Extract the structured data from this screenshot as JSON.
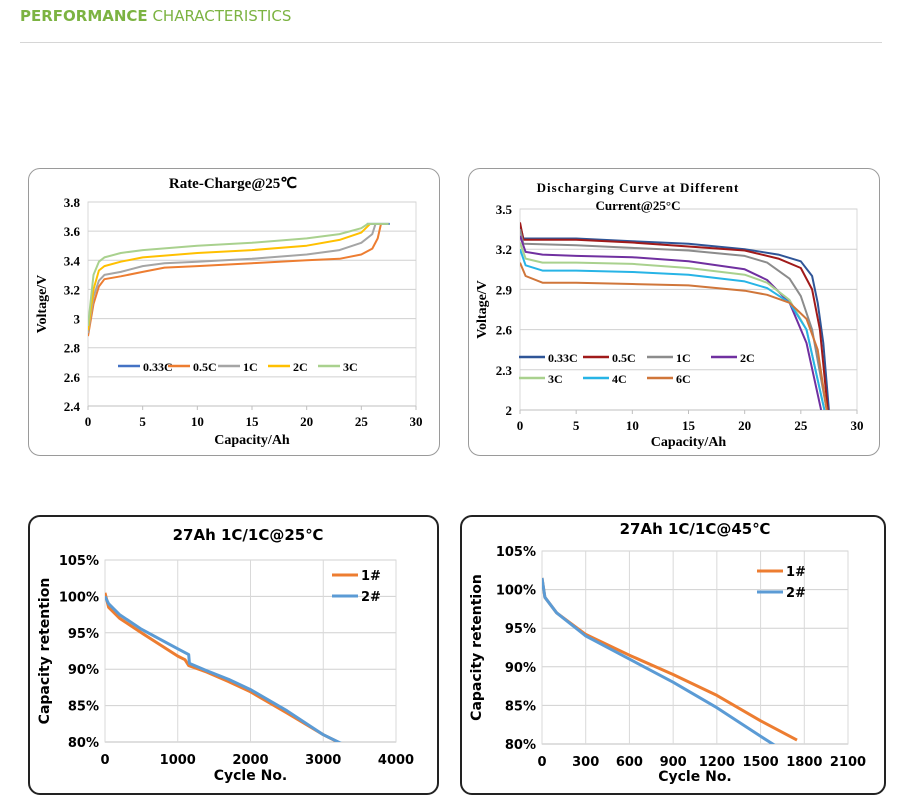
{
  "header": {
    "bold": "PERFORMANCE",
    "rest": " CHARACTERISTICS",
    "color": "#7cb342"
  },
  "chart_data": [
    {
      "type": "line",
      "title": "Rate-Charge@25℃",
      "xlabel": "Capacity/Ah",
      "ylabel": "Voltage/V",
      "xlim": [
        0,
        30
      ],
      "ylim": [
        2.4,
        3.8
      ],
      "xticks": [
        "0",
        "5",
        "10",
        "15",
        "20",
        "25",
        "30"
      ],
      "yticks": [
        "2.4",
        "2.6",
        "2.8",
        "3",
        "3.2",
        "3.4",
        "3.6",
        "3.8"
      ],
      "grid": "horizontal",
      "legend": "center",
      "series": [
        {
          "name": "0.33C",
          "color": "#4472c4",
          "points": [
            [
              25.5,
              3.65
            ],
            [
              27.6,
              3.65
            ]
          ]
        },
        {
          "name": "0.5C",
          "color": "#ed7d31",
          "points": [
            [
              0,
              2.88
            ],
            [
              0.5,
              3.1
            ],
            [
              1,
              3.22
            ],
            [
              1.5,
              3.27
            ],
            [
              3,
              3.29
            ],
            [
              5,
              3.32
            ],
            [
              7,
              3.35
            ],
            [
              10,
              3.36
            ],
            [
              15,
              3.38
            ],
            [
              20,
              3.4
            ],
            [
              23,
              3.41
            ],
            [
              25,
              3.44
            ],
            [
              26,
              3.48
            ],
            [
              26.5,
              3.55
            ],
            [
              26.8,
              3.65
            ]
          ]
        },
        {
          "name": "1C",
          "color": "#a5a5a5",
          "points": [
            [
              0,
              2.9
            ],
            [
              0.5,
              3.15
            ],
            [
              1,
              3.26
            ],
            [
              1.5,
              3.3
            ],
            [
              3,
              3.32
            ],
            [
              5,
              3.36
            ],
            [
              7,
              3.38
            ],
            [
              10,
              3.39
            ],
            [
              15,
              3.41
            ],
            [
              20,
              3.44
            ],
            [
              23,
              3.47
            ],
            [
              25,
              3.52
            ],
            [
              26,
              3.58
            ],
            [
              26.3,
              3.65
            ]
          ]
        },
        {
          "name": "2C",
          "color": "#ffc000",
          "points": [
            [
              0,
              2.92
            ],
            [
              0.5,
              3.2
            ],
            [
              1,
              3.33
            ],
            [
              1.5,
              3.36
            ],
            [
              3,
              3.39
            ],
            [
              5,
              3.42
            ],
            [
              10,
              3.45
            ],
            [
              15,
              3.47
            ],
            [
              20,
              3.5
            ],
            [
              23,
              3.54
            ],
            [
              25,
              3.59
            ],
            [
              25.8,
              3.65
            ]
          ]
        },
        {
          "name": "3C",
          "color": "#a9d18e",
          "points": [
            [
              0,
              2.95
            ],
            [
              0.5,
              3.3
            ],
            [
              1,
              3.39
            ],
            [
              1.5,
              3.42
            ],
            [
              3,
              3.45
            ],
            [
              5,
              3.47
            ],
            [
              10,
              3.5
            ],
            [
              15,
              3.52
            ],
            [
              20,
              3.55
            ],
            [
              23,
              3.58
            ],
            [
              25,
              3.62
            ],
            [
              25.6,
              3.65
            ],
            [
              27.5,
              3.65
            ]
          ]
        }
      ]
    },
    {
      "type": "line",
      "title": "Discharging Curve at Different",
      "title2": "Current@25°C",
      "xlabel": "Capacity/Ah",
      "ylabel": "Voltage/V",
      "xlim": [
        0,
        30
      ],
      "ylim": [
        2,
        3.5
      ],
      "xticks": [
        "0",
        "5",
        "10",
        "15",
        "20",
        "25",
        "30"
      ],
      "yticks": [
        "2",
        "2.3",
        "2.6",
        "2.9",
        "3.2",
        "3.5"
      ],
      "grid": "horizontal",
      "legend": "lower-left",
      "series": [
        {
          "name": "0.33C",
          "color": "#2f5597",
          "points": [
            [
              0,
              3.38
            ],
            [
              0.3,
              3.28
            ],
            [
              5,
              3.28
            ],
            [
              10,
              3.26
            ],
            [
              15,
              3.24
            ],
            [
              20,
              3.2
            ],
            [
              23,
              3.16
            ],
            [
              25,
              3.11
            ],
            [
              26,
              3.0
            ],
            [
              26.5,
              2.8
            ],
            [
              27,
              2.5
            ],
            [
              27.5,
              2.0
            ]
          ]
        },
        {
          "name": "0.5C",
          "color": "#a01a1a",
          "points": [
            [
              0,
              3.4
            ],
            [
              0.3,
              3.27
            ],
            [
              5,
              3.27
            ],
            [
              10,
              3.25
            ],
            [
              15,
              3.22
            ],
            [
              20,
              3.19
            ],
            [
              23,
              3.13
            ],
            [
              25,
              3.06
            ],
            [
              26,
              2.9
            ],
            [
              26.7,
              2.6
            ],
            [
              27.4,
              2.0
            ]
          ]
        },
        {
          "name": "1C",
          "color": "#8c8c8c",
          "points": [
            [
              0,
              3.35
            ],
            [
              0.3,
              3.24
            ],
            [
              5,
              3.23
            ],
            [
              10,
              3.21
            ],
            [
              15,
              3.19
            ],
            [
              20,
              3.15
            ],
            [
              22,
              3.1
            ],
            [
              24,
              2.98
            ],
            [
              25,
              2.85
            ],
            [
              26,
              2.6
            ],
            [
              27.3,
              2.0
            ]
          ]
        },
        {
          "name": "2C",
          "color": "#7030a0",
          "points": [
            [
              0,
              3.3
            ],
            [
              0.5,
              3.18
            ],
            [
              2,
              3.16
            ],
            [
              5,
              3.15
            ],
            [
              10,
              3.14
            ],
            [
              15,
              3.11
            ],
            [
              20,
              3.05
            ],
            [
              22,
              2.97
            ],
            [
              24,
              2.8
            ],
            [
              25.5,
              2.5
            ],
            [
              26.8,
              2.0
            ]
          ]
        },
        {
          "name": "3C",
          "color": "#a9d18e",
          "points": [
            [
              0,
              3.25
            ],
            [
              0.5,
              3.13
            ],
            [
              2,
              3.1
            ],
            [
              5,
              3.1
            ],
            [
              10,
              3.09
            ],
            [
              15,
              3.06
            ],
            [
              20,
              3.01
            ],
            [
              22,
              2.95
            ],
            [
              24,
              2.82
            ],
            [
              25.5,
              2.6
            ],
            [
              27.1,
              2.0
            ]
          ]
        },
        {
          "name": "4C",
          "color": "#27b4e6",
          "points": [
            [
              0,
              3.2
            ],
            [
              0.5,
              3.08
            ],
            [
              2,
              3.04
            ],
            [
              5,
              3.04
            ],
            [
              10,
              3.03
            ],
            [
              15,
              3.01
            ],
            [
              20,
              2.96
            ],
            [
              22,
              2.91
            ],
            [
              24,
              2.8
            ],
            [
              25.5,
              2.6
            ],
            [
              27.1,
              2.0
            ]
          ]
        },
        {
          "name": "6C",
          "color": "#d0763a",
          "points": [
            [
              0,
              3.1
            ],
            [
              0.5,
              3.0
            ],
            [
              2,
              2.95
            ],
            [
              5,
              2.95
            ],
            [
              10,
              2.94
            ],
            [
              15,
              2.93
            ],
            [
              20,
              2.89
            ],
            [
              22,
              2.86
            ],
            [
              24,
              2.8
            ],
            [
              25.5,
              2.68
            ],
            [
              26.5,
              2.45
            ],
            [
              27.3,
              2.0
            ]
          ]
        }
      ]
    },
    {
      "type": "line",
      "title": "27Ah  1C/1C@25℃",
      "xlabel": "Cycle No.",
      "ylabel": "Capacity     retention",
      "xlim": [
        0,
        4000
      ],
      "ylim": [
        80,
        105
      ],
      "xticks": [
        "0",
        "1000",
        "2000",
        "3000",
        "4000"
      ],
      "yticks": [
        "80%",
        "85%",
        "90%",
        "95%",
        "100%",
        "105%"
      ],
      "grid": "both",
      "legend": "top-right",
      "series": [
        {
          "name": "1#",
          "color": "#ed7d31",
          "points": [
            [
              0,
              100.5
            ],
            [
              50,
              98.5
            ],
            [
              200,
              97
            ],
            [
              500,
              95
            ],
            [
              1000,
              91.8
            ],
            [
              1100,
              91.3
            ],
            [
              1150,
              90.5
            ],
            [
              1400,
              89.6
            ],
            [
              1700,
              88.3
            ],
            [
              2000,
              86.9
            ],
            [
              2500,
              84
            ],
            [
              3000,
              81
            ],
            [
              3200,
              80
            ]
          ]
        },
        {
          "name": "2#",
          "color": "#5b9bd5",
          "points": [
            [
              0,
              100
            ],
            [
              50,
              99
            ],
            [
              200,
              97.5
            ],
            [
              500,
              95.5
            ],
            [
              1000,
              92.8
            ],
            [
              1150,
              92
            ],
            [
              1160,
              90.8
            ],
            [
              1400,
              89.8
            ],
            [
              1700,
              88.6
            ],
            [
              2000,
              87.2
            ],
            [
              2500,
              84.3
            ],
            [
              3000,
              81
            ],
            [
              3250,
              79.8
            ]
          ]
        }
      ]
    },
    {
      "type": "line",
      "title": "27Ah 1C/1C@45℃",
      "xlabel": "Cycle No.",
      "ylabel": "Capacity     retention",
      "xlim": [
        0,
        2100
      ],
      "ylim": [
        80,
        105
      ],
      "xticks": [
        "0",
        "300",
        "600",
        "900",
        "1200",
        "1500",
        "1800",
        "2100"
      ],
      "yticks": [
        "80%",
        "85%",
        "90%",
        "95%",
        "100%",
        "105%"
      ],
      "grid": "both",
      "legend": "top-right",
      "series": [
        {
          "name": "1#",
          "color": "#ed7d31",
          "points": [
            [
              0,
              101.5
            ],
            [
              20,
              99
            ],
            [
              100,
              97
            ],
            [
              300,
              94.2
            ],
            [
              600,
              91.5
            ],
            [
              900,
              89
            ],
            [
              1200,
              86.3
            ],
            [
              1500,
              83
            ],
            [
              1750,
              80.5
            ]
          ]
        },
        {
          "name": "2#",
          "color": "#5b9bd5",
          "points": [
            [
              0,
              101.5
            ],
            [
              20,
              99
            ],
            [
              100,
              97
            ],
            [
              300,
              94
            ],
            [
              600,
              91
            ],
            [
              900,
              88
            ],
            [
              1200,
              84.7
            ],
            [
              1500,
              81
            ],
            [
              1600,
              79.8
            ]
          ]
        }
      ]
    }
  ]
}
